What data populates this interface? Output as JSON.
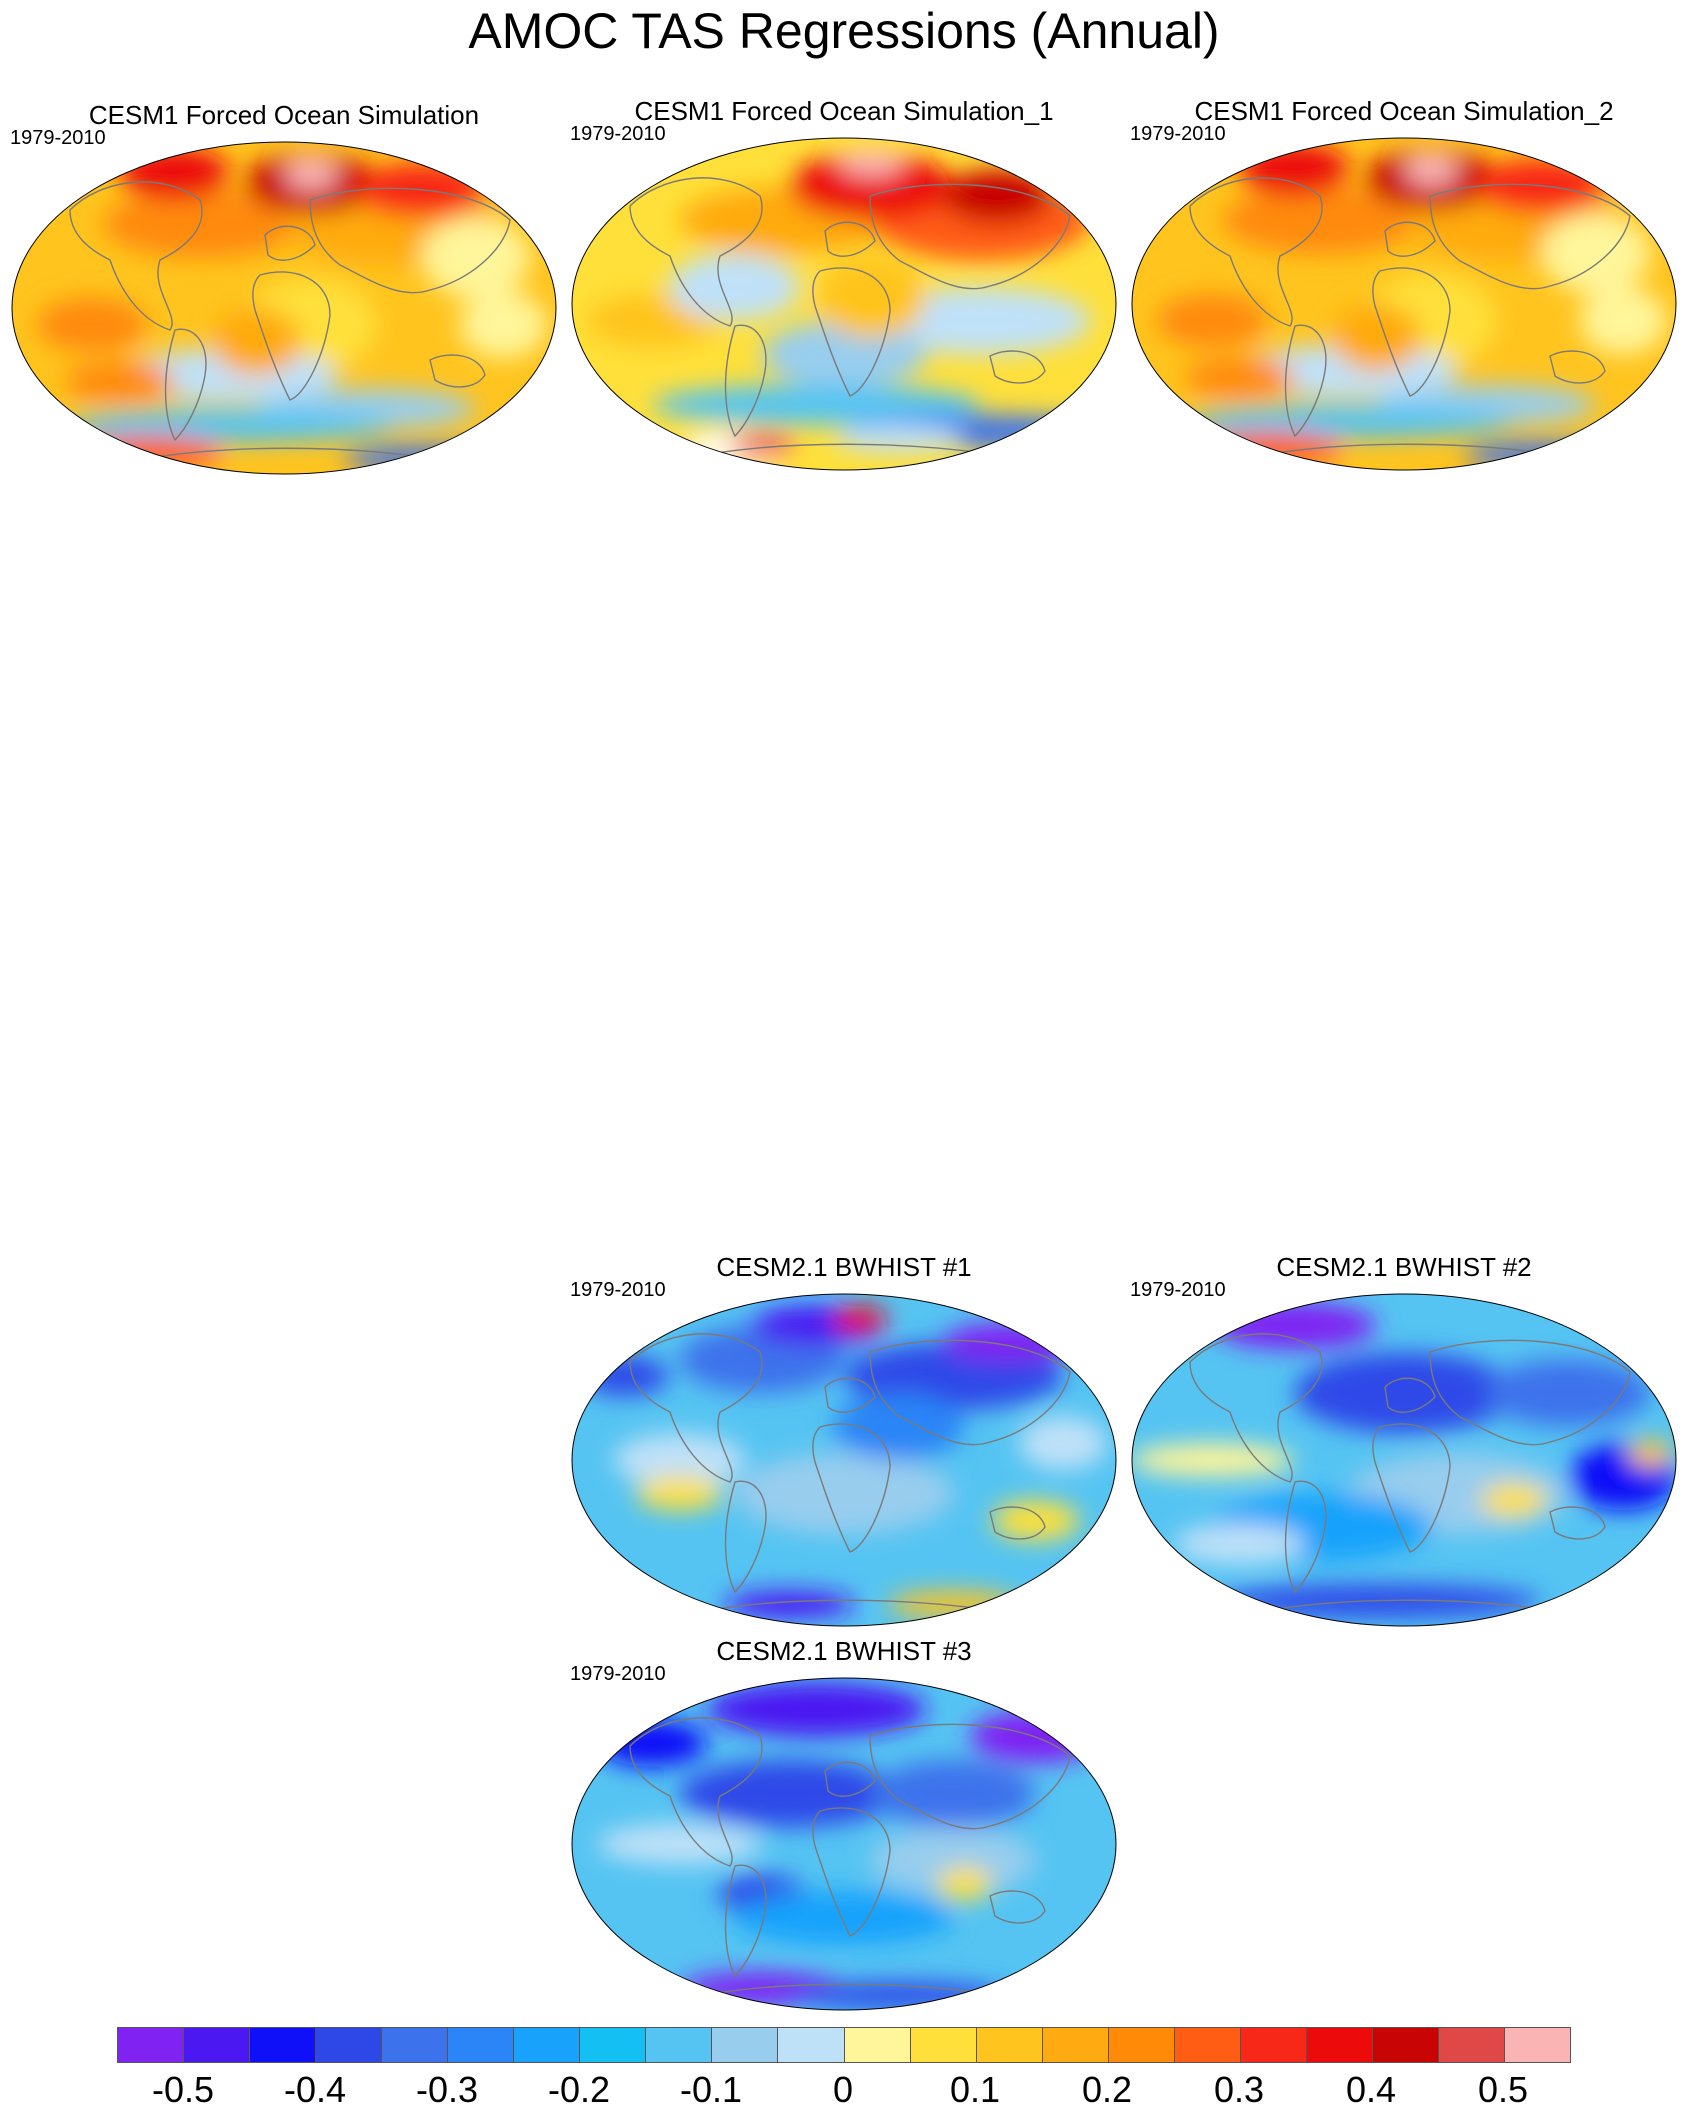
{
  "title": "AMOC TAS Regressions (Annual)",
  "panels": [
    {
      "id": "p1",
      "title": "CESM1 Forced Ocean Simulation",
      "years": "1979-2010",
      "pattern": "warm"
    },
    {
      "id": "p2",
      "title": "CESM1 Forced Ocean Simulation_1",
      "years": "1979-2010",
      "pattern": "warm2"
    },
    {
      "id": "p3",
      "title": "CESM1 Forced Ocean Simulation_2",
      "years": "1979-2010",
      "pattern": "warm"
    },
    {
      "id": "p4",
      "title": "CESM2.1 BWHIST #1",
      "years": "1979-2010",
      "pattern": "cool"
    },
    {
      "id": "p5",
      "title": "CESM2.1 BWHIST #2",
      "years": "1979-2010",
      "pattern": "cool2"
    },
    {
      "id": "p6",
      "title": "CESM2.1 BWHIST #3",
      "years": "1979-2010",
      "pattern": "cool3"
    }
  ],
  "colorbar": {
    "colors": [
      "#7f22f2",
      "#4b18f2",
      "#1010f8",
      "#2e48e8",
      "#3c72ec",
      "#2b85f6",
      "#18a2fc",
      "#14bff4",
      "#55c4f2",
      "#98cdee",
      "#bfe1f8",
      "#fff59a",
      "#ffe03a",
      "#ffc41e",
      "#ffaa10",
      "#ff8a08",
      "#ff5c14",
      "#f82818",
      "#ec0a0a",
      "#c80404",
      "#e04848",
      "#fab4b4"
    ],
    "tick_labels": [
      "-0.5",
      "-0.4",
      "-0.3",
      "-0.2",
      "-0.1",
      "0",
      "0.1",
      "0.2",
      "0.3",
      "0.4",
      "0.5"
    ]
  }
}
